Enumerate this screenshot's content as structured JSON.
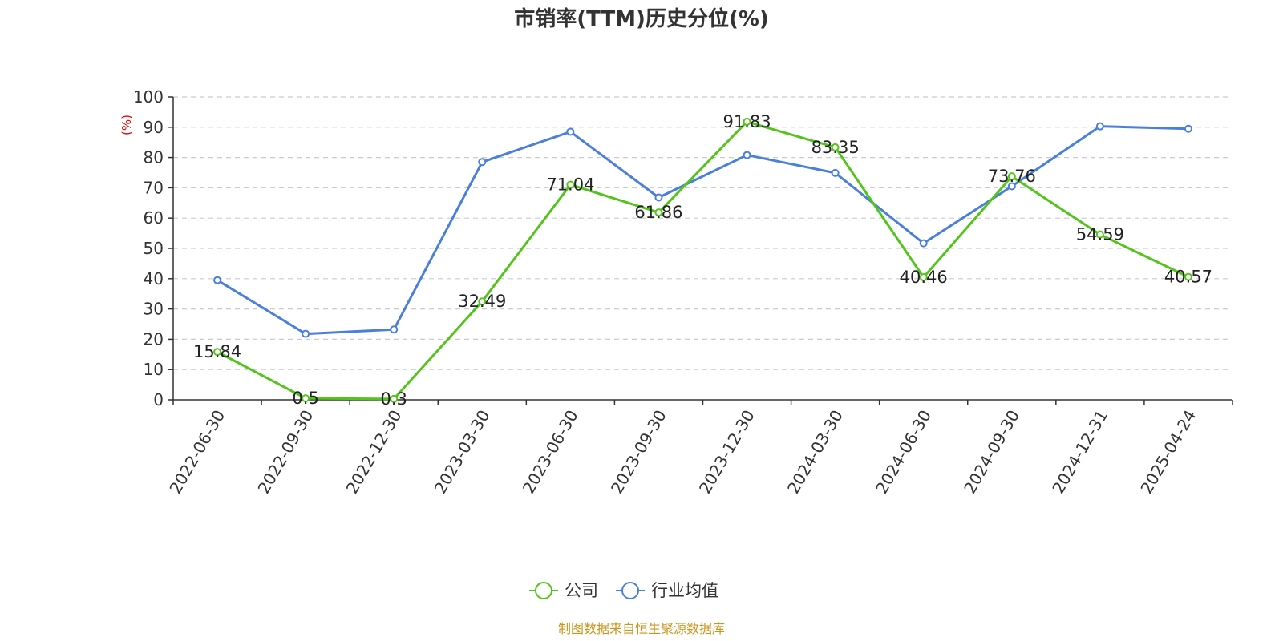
{
  "chart_data": {
    "type": "line",
    "title": "市销率(TTM)历史分位(%)",
    "ylabel": "(%)",
    "ylim": [
      0,
      100
    ],
    "yticks": [
      0,
      10,
      20,
      30,
      40,
      50,
      60,
      70,
      80,
      90,
      100
    ],
    "categories": [
      "2022-06-30",
      "2022-09-30",
      "2022-12-30",
      "2023-03-30",
      "2023-06-30",
      "2023-09-30",
      "2023-12-30",
      "2024-03-30",
      "2024-06-30",
      "2024-09-30",
      "2024-12-31",
      "2025-04-24"
    ],
    "series": [
      {
        "name": "公司",
        "color": "#52c41a",
        "values": [
          15.84,
          0.5,
          0.3,
          32.49,
          71.04,
          61.86,
          91.83,
          83.35,
          40.46,
          73.76,
          54.59,
          40.57
        ],
        "labels": [
          "15.84",
          "0.5",
          "0.3",
          "32.49",
          "71.04",
          "61.86",
          "91.83",
          "83.35",
          "40.46",
          "73.76",
          "54.59",
          "40.57"
        ]
      },
      {
        "name": "行业均值",
        "color": "#4a7fdc",
        "values": [
          39.5,
          21.8,
          23.2,
          78.5,
          88.5,
          66.8,
          80.8,
          74.9,
          51.7,
          70.5,
          90.3,
          89.5
        ]
      }
    ],
    "grid": "horizontal-dashed",
    "legend_position": "bottom-center",
    "ylabel_color": "#e00000"
  },
  "footer": {
    "source": "制图数据来自恒生聚源数据库",
    "source_color": "#c8961e"
  }
}
